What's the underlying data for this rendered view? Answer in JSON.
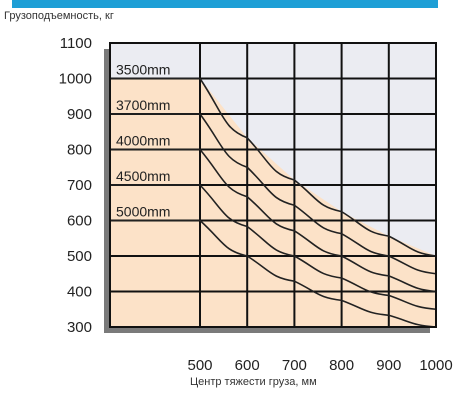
{
  "chart_data": {
    "type": "line",
    "title": "",
    "ylabel": "Грузоподъемность, кг",
    "xlabel": "Центр тяжести груза, мм",
    "xlim": [
      500,
      1000
    ],
    "ylim": [
      300,
      1100
    ],
    "x_ticks": [
      "500",
      "600",
      "700",
      "800",
      "900",
      "1000"
    ],
    "y_ticks": [
      "1100",
      "1000",
      "900",
      "800",
      "700",
      "600",
      "500",
      "400",
      "300"
    ],
    "grid": true,
    "x": [
      500,
      600,
      700,
      800,
      900,
      1000
    ],
    "series": [
      {
        "name": "3500mm",
        "values": [
          1000,
          833,
          714,
          625,
          556,
          500
        ]
      },
      {
        "name": "3700mm",
        "values": [
          900,
          750,
          643,
          563,
          500,
          450
        ]
      },
      {
        "name": "4000mm",
        "values": [
          800,
          667,
          571,
          500,
          444,
          400
        ]
      },
      {
        "name": "4500mm",
        "values": [
          700,
          583,
          500,
          438,
          389,
          350
        ]
      },
      {
        "name": "5000mm",
        "values": [
          600,
          500,
          429,
          375,
          333,
          300
        ]
      }
    ],
    "colors": {
      "load_area": "#fce2c8",
      "background_area": "#ebecf2",
      "lines": "#222222",
      "accent_band": "#1e9fd6"
    }
  }
}
